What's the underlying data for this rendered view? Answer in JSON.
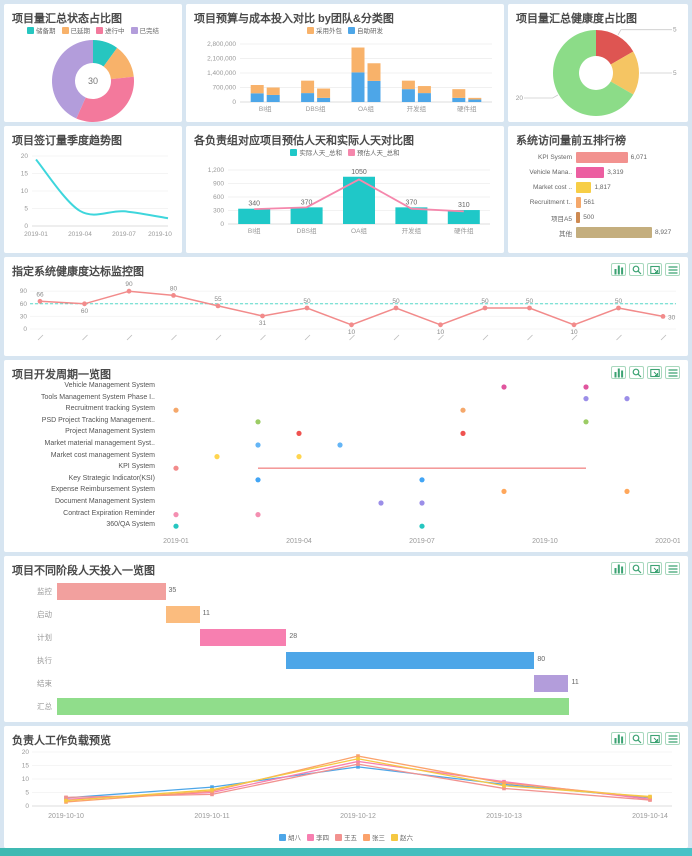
{
  "toolbox": {
    "buttons": [
      {
        "name": "magic-type-button",
        "icon": "bar-chart-icon"
      },
      {
        "name": "data-zoom-button",
        "icon": "magnifier-icon"
      },
      {
        "name": "restore-button",
        "icon": "restore-icon"
      },
      {
        "name": "data-view-button",
        "icon": "data-view-icon"
      }
    ]
  },
  "chart_data": [
    {
      "type": "pie",
      "title": "项目量汇总状态占比图",
      "donut": true,
      "center_label": "30",
      "labels": [
        "储备期",
        "已延期",
        "进行中",
        "已完结"
      ],
      "values": [
        3,
        4,
        10,
        13
      ],
      "colors": [
        "#26C6C0",
        "#F8B26A",
        "#F3799C",
        "#B39DDB"
      ],
      "legend_position": "top"
    },
    {
      "type": "bar",
      "title": "项目预算与成本投入对比 by团队&分类图",
      "stacked": true,
      "categories": [
        "BI组",
        "DBS组",
        "OA组",
        "开发组",
        "硬件组"
      ],
      "series": [
        {
          "name": "采用外包",
          "color": "#F8B26A",
          "budget": [
            400000,
            600000,
            1200000,
            410000,
            420000
          ],
          "cost": [
            360000,
            450000,
            850000,
            340000,
            80000
          ]
        },
        {
          "name": "自助研发",
          "color": "#4DA6E8",
          "budget": [
            420000,
            430000,
            1430000,
            620000,
            200000
          ],
          "cost": [
            340000,
            200000,
            1020000,
            430000,
            120000
          ]
        }
      ],
      "ylim": [
        0,
        2800000
      ],
      "yticks": [
        "0",
        "700,000",
        "1,400,000",
        "2,100,000",
        "2,800,000"
      ]
    },
    {
      "type": "pie",
      "title": "项目量汇总健康度占比图",
      "donut": true,
      "labels": [
        "5",
        "5",
        "20"
      ],
      "values": [
        5,
        5,
        20
      ],
      "colors": [
        "#DE5552",
        "#F5C563",
        "#8CDC88"
      ]
    },
    {
      "type": "line",
      "title": "项目签订量季度趋势图",
      "x": [
        "2019-01",
        "2019-04",
        "2019-07",
        "2019-10"
      ],
      "values": [
        19,
        4.3,
        4.2,
        2.2
      ],
      "color": "#3ED6DC",
      "ylim": [
        0,
        20
      ],
      "yticks": [
        "0",
        "5",
        "10",
        "15",
        "20"
      ],
      "smooth": true
    },
    {
      "type": "bar+line",
      "title": "各负责组对应项目预估人天和实际人天对比图",
      "categories": [
        "BI组",
        "DBS组",
        "OA组",
        "开发组",
        "硬件组"
      ],
      "bar": {
        "name": "实际人天_总和",
        "color": "#1FC8C8",
        "values": [
          340,
          370,
          1050,
          370,
          310
        ]
      },
      "bar_labels": [
        "340",
        "370",
        "1050",
        "370",
        "310"
      ],
      "line": {
        "name": "预估人天_总和",
        "color": "#F587AC",
        "values": [
          330,
          370,
          990,
          340,
          280
        ]
      },
      "ylim": [
        0,
        1200
      ],
      "yticks": [
        "0",
        "300",
        "600",
        "900",
        "1,200"
      ]
    },
    {
      "type": "bar",
      "title": "系统访问量前五排行榜",
      "horizontal": true,
      "max": 8927,
      "items": [
        {
          "label": "KPI System",
          "value": "6,071",
          "v": 6071,
          "color": "#F2928F"
        },
        {
          "label": "Vehicle Mana..",
          "value": "3,319",
          "v": 3319,
          "color": "#EC5FA1"
        },
        {
          "label": "Market cost ..",
          "value": "1,817",
          "v": 1817,
          "color": "#F7CE46"
        },
        {
          "label": "Recruitment t..",
          "value": "561",
          "v": 561,
          "color": "#F5A86B"
        },
        {
          "label": "项目A5",
          "value": "500",
          "v": 500,
          "color": "#CE8A52"
        },
        {
          "label": "其他",
          "value": "8,927",
          "v": 8927,
          "color": "#C4AE7E"
        }
      ]
    },
    {
      "type": "line",
      "title": "指定系统健康度达标监控图",
      "values": [
        66,
        60,
        90,
        80,
        55,
        31,
        50,
        10,
        50,
        10,
        50,
        50,
        10,
        50,
        30
      ],
      "label_side": [
        "up",
        "down",
        "up",
        "up",
        "up",
        "down",
        "up",
        "down",
        "up",
        "down",
        "up",
        "up",
        "down",
        "up",
        "right"
      ],
      "threshold": 60,
      "color": "#F28B8B",
      "threshold_color": "#57D9C9",
      "ylim": [
        0,
        100
      ],
      "yticks": [
        "0",
        "30",
        "60",
        "90"
      ]
    },
    {
      "type": "scatter",
      "title": "项目开发周期一览图",
      "x_ticks": [
        "2019-01",
        "2019-04",
        "2019-07",
        "2019-10",
        "2020-01"
      ],
      "x_tick_months": [
        0,
        3,
        6,
        9,
        12
      ],
      "rows": [
        {
          "label": "Vehicle Management System",
          "color": "#E0559E",
          "points": [
            8,
            10
          ]
        },
        {
          "label": "Tools Management System Phase I..",
          "color": "#9B8EE8",
          "points": [
            10,
            11
          ]
        },
        {
          "label": "Recruitment tracking System",
          "color": "#F5A86B",
          "points": [
            0,
            7
          ]
        },
        {
          "label": "PSD Project Tracking Management..",
          "color": "#9CCC65",
          "points": [
            2,
            10
          ]
        },
        {
          "label": "Project Management System",
          "color": "#EF5350",
          "points": [
            3,
            7
          ]
        },
        {
          "label": "Market material management Syst..",
          "color": "#64B5F6",
          "points": [
            2,
            4
          ]
        },
        {
          "label": "Market cost management System",
          "color": "#FFD54F",
          "points": [
            1,
            3
          ]
        },
        {
          "label": "KPI System",
          "color": "#F28B8B",
          "points": [
            0
          ],
          "line": [
            2,
            10
          ]
        },
        {
          "label": "Key Strategic Indicator(KSI)",
          "color": "#42A5F5",
          "points": [
            2,
            6
          ]
        },
        {
          "label": "Expense Reimbursement System",
          "color": "#FFA75B",
          "points": [
            8,
            11
          ]
        },
        {
          "label": "Document Management System",
          "color": "#9B8EE8",
          "points": [
            5,
            6
          ]
        },
        {
          "label": "Contract Expiration Reminder",
          "color": "#F48FB1",
          "points": [
            0,
            2
          ]
        },
        {
          "label": "360/QA System",
          "color": "#26C6C0",
          "points": [
            0,
            6
          ]
        }
      ]
    },
    {
      "type": "bar",
      "title": "项目不同阶段人天投入一览图",
      "horizontal": true,
      "waterfall": true,
      "xmax": 200,
      "bars": [
        {
          "label": "监控",
          "start": 0,
          "end": 35,
          "value": "35",
          "color": "#F2A09E"
        },
        {
          "label": "启动",
          "start": 35,
          "end": 46,
          "value": "11",
          "color": "#FBBC7E"
        },
        {
          "label": "计划",
          "start": 46,
          "end": 74,
          "value": "28",
          "color": "#F77FB0"
        },
        {
          "label": "执行",
          "start": 74,
          "end": 154,
          "value": "80",
          "color": "#4DA6E8"
        },
        {
          "label": "结束",
          "start": 154,
          "end": 165,
          "value": "11",
          "color": "#B39DDB"
        },
        {
          "label": "汇总",
          "start": 0,
          "end": 165,
          "value": "",
          "color": "#90DD8B"
        }
      ]
    },
    {
      "type": "line",
      "title": "负责人工作负载预览",
      "x": [
        "2019-10-10",
        "2019-10-11",
        "2019-10-12",
        "2019-10-13",
        "2019-10-14"
      ],
      "ylim": [
        0,
        20
      ],
      "yticks": [
        "0",
        "5",
        "10",
        "15",
        "20"
      ],
      "legend_position": "bottom",
      "series": [
        {
          "name": "胡八",
          "color": "#4DA6E8",
          "values": [
            3,
            7,
            14.5,
            8,
            3
          ]
        },
        {
          "name": "李四",
          "color": "#F77FB0",
          "values": [
            2.5,
            5,
            16.5,
            9,
            2.5
          ]
        },
        {
          "name": "王五",
          "color": "#F2928F",
          "values": [
            3.2,
            4.3,
            15.5,
            6.5,
            2.2
          ]
        },
        {
          "name": "张三",
          "color": "#FBA26B",
          "values": [
            1.5,
            5.5,
            18.5,
            8.5,
            3.2
          ]
        },
        {
          "name": "赵六",
          "color": "#F5C842",
          "values": [
            2,
            6,
            17.5,
            7.5,
            3.5
          ]
        }
      ]
    }
  ]
}
